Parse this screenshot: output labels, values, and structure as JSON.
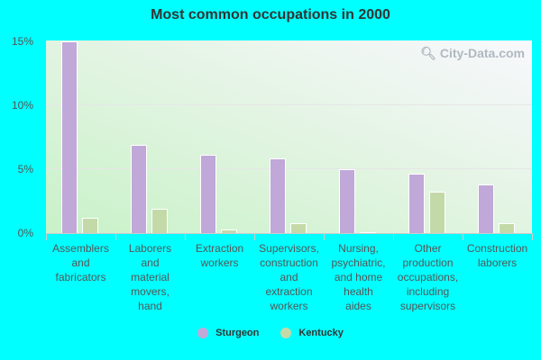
{
  "chart_data": {
    "type": "bar",
    "title": "Most common occupations in 2000",
    "xlabel": "",
    "ylabel": "",
    "ylim": [
      0,
      15
    ],
    "yticks": [
      "0%",
      "5%",
      "10%",
      "15%"
    ],
    "grid": true,
    "legend_position": "bottom",
    "categories": [
      "Assemblers and fabricators",
      "Laborers and material movers, hand",
      "Extraction workers",
      "Supervisors, construction and extraction workers",
      "Nursing, psychiatric, and home health aides",
      "Other production occupations, including supervisors",
      "Construction laborers"
    ],
    "series": [
      {
        "name": "Sturgeon",
        "color": "#c0a8d8",
        "values": [
          14.9,
          6.9,
          6.1,
          5.8,
          5.0,
          4.6,
          3.8
        ]
      },
      {
        "name": "Kentucky",
        "color": "#c4d9a8",
        "values": [
          1.2,
          1.9,
          0.3,
          0.8,
          0.1,
          3.2,
          0.8
        ]
      }
    ]
  },
  "labels": {
    "title": "Most common occupations in 2000",
    "watermark": "City-Data.com",
    "y": [
      "15%",
      "10%",
      "5%",
      "0%"
    ],
    "x": [
      [
        "Assemblers",
        "and",
        "fabricators"
      ],
      [
        "Laborers",
        "and",
        "material",
        "movers,",
        "hand"
      ],
      [
        "Extraction",
        "workers"
      ],
      [
        "Supervisors,",
        "construction",
        "and",
        "extraction",
        "workers"
      ],
      [
        "Nursing,",
        "psychiatric,",
        "and home",
        "health",
        "aides"
      ],
      [
        "Other",
        "production",
        "occupations,",
        "including",
        "supervisors"
      ],
      [
        "Construction",
        "laborers"
      ]
    ],
    "legend": [
      "Sturgeon",
      "Kentucky"
    ]
  }
}
